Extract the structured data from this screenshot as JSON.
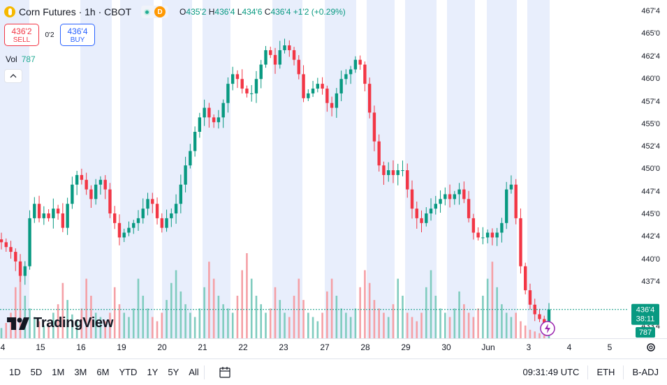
{
  "header": {
    "symbol_title": "Corn Futures · 1h · CBOT",
    "market_status_icon": "market-open-dot-icon",
    "data_badge": "D",
    "ohlc": {
      "o_label": "O",
      "o_value": "435'2",
      "h_label": "H",
      "h_value": "436'4",
      "l_label": "L",
      "l_value": "434'6",
      "c_label": "C",
      "c_value": "436'4",
      "change": "+1'2 (+0.29%)"
    }
  },
  "trade": {
    "sell_price": "436'2",
    "sell_label": "SELL",
    "spread": "0'2",
    "buy_price": "436'4",
    "buy_label": "BUY"
  },
  "volume": {
    "label": "Vol",
    "value": "787"
  },
  "price_axis": {
    "labels": [
      "467'4",
      "465'0",
      "462'4",
      "460'0",
      "457'4",
      "455'0",
      "452'4",
      "450'0",
      "447'4",
      "445'0",
      "442'4",
      "440'0",
      "437'4",
      "433'4"
    ],
    "current_price": "436'4",
    "countdown": "38:11",
    "volume_tag": "787"
  },
  "time_axis": {
    "labels": [
      "4",
      "15",
      "16",
      "19",
      "20",
      "21",
      "22",
      "23",
      "27",
      "28",
      "29",
      "30",
      "Jun",
      "3",
      "4",
      "5"
    ]
  },
  "brand": {
    "name": "TradingView"
  },
  "toolbar": {
    "ranges": [
      "1D",
      "5D",
      "1M",
      "3M",
      "6M",
      "YTD",
      "1Y",
      "5Y",
      "All"
    ],
    "time": "09:31:49 UTC",
    "session": "ETH",
    "adjustment": "B-ADJ"
  },
  "colors": {
    "up": "#089981",
    "down": "#f23645",
    "up_vol": "#80ccbf",
    "down_vol": "#f5a0a6",
    "session_bg": "#e8eefc"
  },
  "chart_data": {
    "type": "candlestick",
    "x_labels": [
      "4",
      "15",
      "16",
      "19",
      "20",
      "21",
      "22",
      "23",
      "27",
      "28",
      "29",
      "30",
      "Jun",
      "3",
      "4",
      "5"
    ],
    "y_ticks": [
      "467'4",
      "465'0",
      "462'4",
      "460'0",
      "457'4",
      "455'0",
      "452'4",
      "450'0",
      "447'4",
      "445'0",
      "442'4",
      "440'0",
      "437'4"
    ],
    "ylim": [
      433.5,
      468.0
    ],
    "close_path": [
      443.5,
      443.0,
      442.5,
      441.5,
      440.0,
      441.0,
      446.0,
      447.5,
      446.0,
      446.5,
      446.0,
      447.0,
      446.5,
      445.0,
      447.5,
      449.5,
      450.5,
      450.0,
      449.0,
      448.0,
      449.5,
      450.0,
      449.0,
      446.5,
      445.5,
      444.0,
      444.5,
      445.0,
      445.5,
      446.0,
      447.0,
      448.0,
      447.5,
      446.0,
      445.0,
      446.0,
      446.5,
      447.5,
      449.5,
      451.5,
      453.0,
      455.0,
      456.5,
      457.5,
      456.5,
      456.0,
      456.5,
      458.0,
      460.0,
      461.0,
      460.5,
      459.5,
      459.0,
      459.0,
      460.5,
      462.0,
      463.5,
      463.0,
      462.0,
      463.5,
      464.0,
      463.5,
      462.5,
      461.0,
      458.5,
      459.0,
      459.5,
      460.0,
      459.5,
      458.0,
      457.5,
      459.0,
      460.5,
      461.0,
      461.5,
      462.5,
      462.0,
      460.0,
      457.0,
      454.0,
      451.5,
      450.5,
      451.0,
      450.5,
      451.0,
      451.0,
      449.0,
      447.0,
      446.0,
      445.5,
      446.5,
      447.0,
      447.5,
      448.0,
      448.5,
      448.0,
      448.5,
      449.0,
      448.0,
      446.0,
      444.5,
      444.0,
      444.0,
      444.5,
      444.0,
      444.5,
      445.5,
      449.0,
      449.5,
      446.0,
      441.0,
      438.5,
      437.0,
      436.0,
      435.5,
      435.0,
      436.5
    ],
    "volume_path": [
      120,
      180,
      300,
      600,
      800,
      500,
      350,
      250,
      200,
      150,
      180,
      300,
      400,
      650,
      450,
      280,
      200,
      350,
      700,
      500,
      300,
      250,
      200,
      300,
      600,
      400,
      300,
      250,
      350,
      700,
      500,
      350,
      250,
      200,
      300,
      450,
      650,
      800,
      550,
      400,
      300,
      250,
      350,
      600,
      900,
      700,
      500,
      400,
      350,
      300,
      500,
      800,
      1000,
      700,
      500,
      400,
      300,
      350,
      600,
      450,
      300,
      250,
      500,
      700,
      450,
      300,
      250,
      200,
      300,
      550,
      700,
      500,
      350,
      300,
      250,
      350,
      600,
      800,
      650,
      450,
      350,
      300,
      250,
      400,
      700,
      500,
      300,
      250,
      200,
      300,
      600,
      800,
      500,
      350,
      300,
      250,
      350,
      550,
      400,
      300,
      250,
      350,
      500,
      700,
      900,
      600,
      400,
      300,
      250,
      300,
      200,
      150,
      100,
      80,
      60,
      40,
      30
    ]
  }
}
